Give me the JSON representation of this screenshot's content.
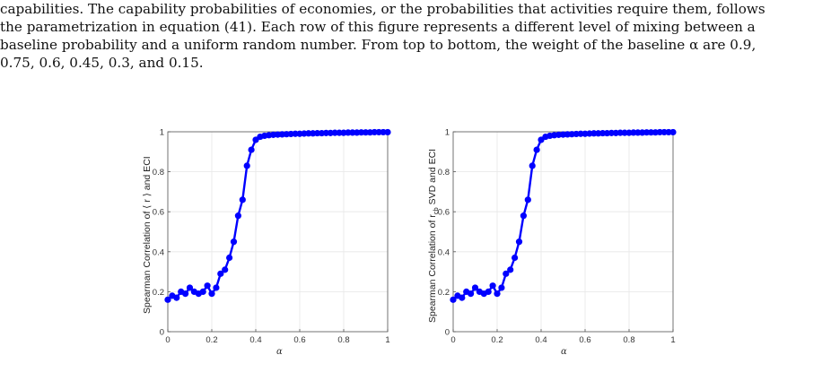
{
  "text": {
    "lines": [
      "capabilities. The capability probabilities of economies, or the probabilities that activities require them, follows",
      "the parametrization in equation (41). Each row of this figure represents a different level of mixing between a",
      "baseline probability and a uniform random number. From top to bottom, the weight of the baseline α are 0.9,",
      "0.75, 0.6, 0.45, 0.3, and 0.15."
    ]
  },
  "chart_data": [
    {
      "type": "line",
      "ylabel": "Spearman Correlation of ⟨ r ⟩ and ECI",
      "xlabel": "α",
      "xlim": [
        0,
        1
      ],
      "ylim": [
        0,
        1
      ],
      "xticks": [
        "0",
        "0.2",
        "0.4",
        "0.6",
        "0.8",
        "1"
      ],
      "yticks": [
        "0",
        "0.2",
        "0.4",
        "0.6",
        "0.8",
        "1"
      ],
      "grid": true,
      "color": "#0000ff",
      "x": [
        0,
        0.02,
        0.04,
        0.06,
        0.08,
        0.1,
        0.12,
        0.14,
        0.16,
        0.18,
        0.2,
        0.22,
        0.24,
        0.26,
        0.28,
        0.3,
        0.32,
        0.34,
        0.36,
        0.38,
        0.4,
        0.42,
        0.44,
        0.46,
        0.48,
        0.5,
        0.52,
        0.54,
        0.56,
        0.58,
        0.6,
        0.62,
        0.64,
        0.66,
        0.68,
        0.7,
        0.72,
        0.74,
        0.76,
        0.78,
        0.8,
        0.82,
        0.84,
        0.86,
        0.88,
        0.9,
        0.92,
        0.94,
        0.96,
        0.98,
        1
      ],
      "y": [
        0.16,
        0.18,
        0.17,
        0.2,
        0.19,
        0.22,
        0.2,
        0.19,
        0.2,
        0.23,
        0.19,
        0.22,
        0.29,
        0.31,
        0.37,
        0.45,
        0.58,
        0.66,
        0.83,
        0.91,
        0.96,
        0.975,
        0.98,
        0.983,
        0.985,
        0.986,
        0.987,
        0.988,
        0.989,
        0.99,
        0.99,
        0.991,
        0.992,
        0.992,
        0.993,
        0.993,
        0.994,
        0.994,
        0.995,
        0.995,
        0.995,
        0.996,
        0.996,
        0.996,
        0.997,
        0.997,
        0.997,
        0.998,
        0.998,
        0.998,
        0.998
      ]
    },
    {
      "type": "line",
      "ylabel": "Spearman Correlation of r",
      "ylabel_sub": "cb",
      "ylabel_rest": " SVD and ECI",
      "xlabel": "α",
      "xlim": [
        0,
        1
      ],
      "ylim": [
        0,
        1
      ],
      "xticks": [
        "0",
        "0.2",
        "0.4",
        "0.6",
        "0.8",
        "1"
      ],
      "yticks": [
        "0",
        "0.2",
        "0.4",
        "0.6",
        "0.8",
        "1"
      ],
      "grid": true,
      "color": "#0000ff",
      "x": [
        0,
        0.02,
        0.04,
        0.06,
        0.08,
        0.1,
        0.12,
        0.14,
        0.16,
        0.18,
        0.2,
        0.22,
        0.24,
        0.26,
        0.28,
        0.3,
        0.32,
        0.34,
        0.36,
        0.38,
        0.4,
        0.42,
        0.44,
        0.46,
        0.48,
        0.5,
        0.52,
        0.54,
        0.56,
        0.58,
        0.6,
        0.62,
        0.64,
        0.66,
        0.68,
        0.7,
        0.72,
        0.74,
        0.76,
        0.78,
        0.8,
        0.82,
        0.84,
        0.86,
        0.88,
        0.9,
        0.92,
        0.94,
        0.96,
        0.98,
        1
      ],
      "y": [
        0.16,
        0.18,
        0.17,
        0.2,
        0.19,
        0.22,
        0.2,
        0.19,
        0.2,
        0.23,
        0.19,
        0.22,
        0.29,
        0.31,
        0.37,
        0.45,
        0.58,
        0.66,
        0.83,
        0.91,
        0.96,
        0.975,
        0.98,
        0.983,
        0.985,
        0.986,
        0.987,
        0.988,
        0.989,
        0.99,
        0.99,
        0.991,
        0.992,
        0.992,
        0.993,
        0.993,
        0.994,
        0.994,
        0.995,
        0.995,
        0.995,
        0.996,
        0.996,
        0.996,
        0.997,
        0.997,
        0.997,
        0.998,
        0.998,
        0.998,
        0.998
      ]
    }
  ]
}
